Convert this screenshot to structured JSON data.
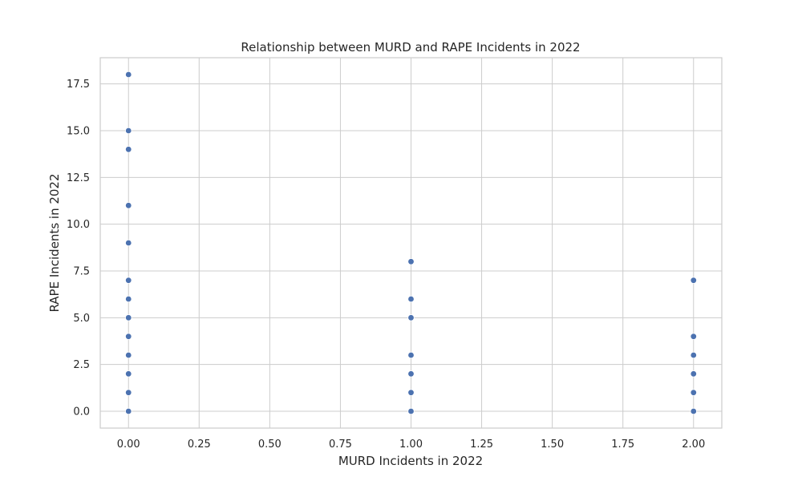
{
  "chart_data": {
    "type": "scatter",
    "title": "Relationship between MURD and RAPE Incidents in 2022",
    "xlabel": "MURD Incidents in 2022",
    "ylabel": "RAPE Incidents in 2022",
    "xlim": [
      -0.1,
      2.1
    ],
    "ylim": [
      -0.9,
      18.9
    ],
    "x_ticks": [
      0.0,
      0.25,
      0.5,
      0.75,
      1.0,
      1.25,
      1.5,
      1.75,
      2.0
    ],
    "x_tick_labels": [
      "0.00",
      "0.25",
      "0.50",
      "0.75",
      "1.00",
      "1.25",
      "1.50",
      "1.75",
      "2.00"
    ],
    "y_ticks": [
      0.0,
      2.5,
      5.0,
      7.5,
      10.0,
      12.5,
      15.0,
      17.5
    ],
    "y_tick_labels": [
      "0.0",
      "2.5",
      "5.0",
      "7.5",
      "10.0",
      "12.5",
      "15.0",
      "17.5"
    ],
    "grid": true,
    "point_color": "#4c72b0",
    "points": [
      {
        "x": 0,
        "y": 18
      },
      {
        "x": 0,
        "y": 15
      },
      {
        "x": 0,
        "y": 14
      },
      {
        "x": 0,
        "y": 11
      },
      {
        "x": 0,
        "y": 9
      },
      {
        "x": 0,
        "y": 7
      },
      {
        "x": 0,
        "y": 6
      },
      {
        "x": 0,
        "y": 5
      },
      {
        "x": 0,
        "y": 4
      },
      {
        "x": 0,
        "y": 3
      },
      {
        "x": 0,
        "y": 2
      },
      {
        "x": 0,
        "y": 1
      },
      {
        "x": 0,
        "y": 0
      },
      {
        "x": 1,
        "y": 8
      },
      {
        "x": 1,
        "y": 6
      },
      {
        "x": 1,
        "y": 5
      },
      {
        "x": 1,
        "y": 3
      },
      {
        "x": 1,
        "y": 2
      },
      {
        "x": 1,
        "y": 1
      },
      {
        "x": 1,
        "y": 0
      },
      {
        "x": 2,
        "y": 7
      },
      {
        "x": 2,
        "y": 4
      },
      {
        "x": 2,
        "y": 3
      },
      {
        "x": 2,
        "y": 2
      },
      {
        "x": 2,
        "y": 1
      },
      {
        "x": 2,
        "y": 0
      }
    ]
  }
}
